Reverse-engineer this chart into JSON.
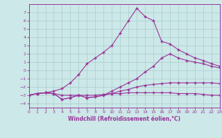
{
  "background_color": "#cce8e8",
  "grid_color": "#aacccc",
  "line_color": "#993399",
  "xlabel": "Windchill (Refroidissement éolien,°C)",
  "xlim": [
    0,
    23
  ],
  "ylim": [
    -4.5,
    8.0
  ],
  "xticks": [
    0,
    1,
    2,
    3,
    4,
    5,
    6,
    7,
    8,
    9,
    10,
    11,
    12,
    13,
    14,
    15,
    16,
    17,
    18,
    19,
    20,
    21,
    22,
    23
  ],
  "yticks": [
    -4,
    -3,
    -2,
    -1,
    0,
    1,
    2,
    3,
    4,
    5,
    6,
    7
  ],
  "line1_x": [
    0,
    1,
    2,
    3,
    4,
    5,
    6,
    7,
    8,
    9,
    10,
    11,
    12,
    13,
    14,
    15,
    16,
    17,
    18,
    19,
    20,
    21,
    22,
    23
  ],
  "line1_y": [
    -3.0,
    -2.8,
    -2.7,
    -2.8,
    -3.0,
    -3.0,
    -3.0,
    -3.0,
    -3.0,
    -2.9,
    -2.8,
    -2.8,
    -2.7,
    -2.7,
    -2.7,
    -2.7,
    -2.7,
    -2.7,
    -2.8,
    -2.8,
    -2.8,
    -2.9,
    -3.0,
    -3.0
  ],
  "line2_x": [
    0,
    1,
    2,
    3,
    4,
    5,
    6,
    7,
    8,
    9,
    10,
    11,
    12,
    13,
    14,
    15,
    16,
    17,
    18,
    19,
    20,
    21,
    22,
    23
  ],
  "line2_y": [
    -3.0,
    -2.8,
    -2.7,
    -2.8,
    -3.5,
    -3.3,
    -3.0,
    -3.3,
    -3.2,
    -3.0,
    -2.8,
    -2.5,
    -2.3,
    -2.0,
    -1.8,
    -1.7,
    -1.6,
    -1.5,
    -1.5,
    -1.5,
    -1.5,
    -1.5,
    -1.5,
    -1.6
  ],
  "line3_x": [
    0,
    1,
    2,
    3,
    4,
    5,
    6,
    7,
    8,
    9,
    10,
    11,
    12,
    13,
    14,
    15,
    16,
    17,
    18,
    19,
    20,
    21,
    22,
    23
  ],
  "line3_y": [
    -3.0,
    -2.8,
    -2.7,
    -2.8,
    -3.5,
    -3.3,
    -3.0,
    -3.3,
    -3.2,
    -3.0,
    -2.5,
    -2.0,
    -1.5,
    -1.0,
    -0.2,
    0.5,
    1.5,
    2.0,
    1.5,
    1.2,
    1.0,
    0.8,
    0.5,
    0.3
  ],
  "line4_x": [
    0,
    1,
    2,
    3,
    4,
    5,
    6,
    7,
    8,
    9,
    10,
    11,
    12,
    13,
    14,
    15,
    16,
    17,
    18,
    19,
    20,
    21,
    22,
    23
  ],
  "line4_y": [
    -3.0,
    -2.8,
    -2.7,
    -2.5,
    -2.2,
    -1.5,
    -0.5,
    0.8,
    1.5,
    2.2,
    3.0,
    4.5,
    6.0,
    7.5,
    6.5,
    6.0,
    3.5,
    3.2,
    2.5,
    2.0,
    1.5,
    1.2,
    0.8,
    0.5
  ]
}
